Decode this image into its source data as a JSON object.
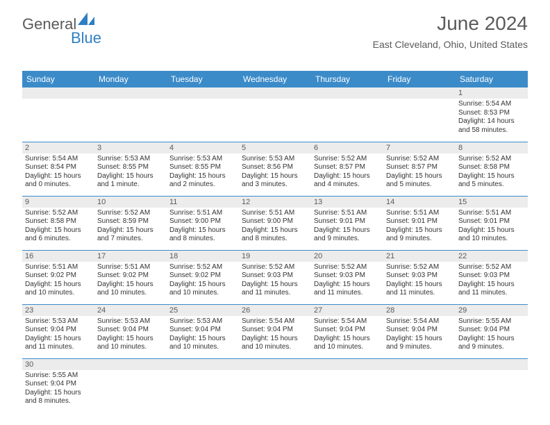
{
  "logo": {
    "part1": "General",
    "part2": "Blue"
  },
  "title": "June 2024",
  "location": "East Cleveland, Ohio, United States",
  "header_bg": "#3b8bc9",
  "header_fg": "#ffffff",
  "daynum_bg": "#ececec",
  "row_border": "#3b8bc9",
  "text_color": "#333333",
  "days": [
    "Sunday",
    "Monday",
    "Tuesday",
    "Wednesday",
    "Thursday",
    "Friday",
    "Saturday"
  ],
  "weeks": [
    [
      null,
      null,
      null,
      null,
      null,
      null,
      {
        "n": "1",
        "sr": "Sunrise: 5:54 AM",
        "ss": "Sunset: 8:53 PM",
        "dl": "Daylight: 14 hours and 58 minutes."
      }
    ],
    [
      {
        "n": "2",
        "sr": "Sunrise: 5:54 AM",
        "ss": "Sunset: 8:54 PM",
        "dl": "Daylight: 15 hours and 0 minutes."
      },
      {
        "n": "3",
        "sr": "Sunrise: 5:53 AM",
        "ss": "Sunset: 8:55 PM",
        "dl": "Daylight: 15 hours and 1 minute."
      },
      {
        "n": "4",
        "sr": "Sunrise: 5:53 AM",
        "ss": "Sunset: 8:55 PM",
        "dl": "Daylight: 15 hours and 2 minutes."
      },
      {
        "n": "5",
        "sr": "Sunrise: 5:53 AM",
        "ss": "Sunset: 8:56 PM",
        "dl": "Daylight: 15 hours and 3 minutes."
      },
      {
        "n": "6",
        "sr": "Sunrise: 5:52 AM",
        "ss": "Sunset: 8:57 PM",
        "dl": "Daylight: 15 hours and 4 minutes."
      },
      {
        "n": "7",
        "sr": "Sunrise: 5:52 AM",
        "ss": "Sunset: 8:57 PM",
        "dl": "Daylight: 15 hours and 5 minutes."
      },
      {
        "n": "8",
        "sr": "Sunrise: 5:52 AM",
        "ss": "Sunset: 8:58 PM",
        "dl": "Daylight: 15 hours and 5 minutes."
      }
    ],
    [
      {
        "n": "9",
        "sr": "Sunrise: 5:52 AM",
        "ss": "Sunset: 8:58 PM",
        "dl": "Daylight: 15 hours and 6 minutes."
      },
      {
        "n": "10",
        "sr": "Sunrise: 5:52 AM",
        "ss": "Sunset: 8:59 PM",
        "dl": "Daylight: 15 hours and 7 minutes."
      },
      {
        "n": "11",
        "sr": "Sunrise: 5:51 AM",
        "ss": "Sunset: 9:00 PM",
        "dl": "Daylight: 15 hours and 8 minutes."
      },
      {
        "n": "12",
        "sr": "Sunrise: 5:51 AM",
        "ss": "Sunset: 9:00 PM",
        "dl": "Daylight: 15 hours and 8 minutes."
      },
      {
        "n": "13",
        "sr": "Sunrise: 5:51 AM",
        "ss": "Sunset: 9:01 PM",
        "dl": "Daylight: 15 hours and 9 minutes."
      },
      {
        "n": "14",
        "sr": "Sunrise: 5:51 AM",
        "ss": "Sunset: 9:01 PM",
        "dl": "Daylight: 15 hours and 9 minutes."
      },
      {
        "n": "15",
        "sr": "Sunrise: 5:51 AM",
        "ss": "Sunset: 9:01 PM",
        "dl": "Daylight: 15 hours and 10 minutes."
      }
    ],
    [
      {
        "n": "16",
        "sr": "Sunrise: 5:51 AM",
        "ss": "Sunset: 9:02 PM",
        "dl": "Daylight: 15 hours and 10 minutes."
      },
      {
        "n": "17",
        "sr": "Sunrise: 5:51 AM",
        "ss": "Sunset: 9:02 PM",
        "dl": "Daylight: 15 hours and 10 minutes."
      },
      {
        "n": "18",
        "sr": "Sunrise: 5:52 AM",
        "ss": "Sunset: 9:02 PM",
        "dl": "Daylight: 15 hours and 10 minutes."
      },
      {
        "n": "19",
        "sr": "Sunrise: 5:52 AM",
        "ss": "Sunset: 9:03 PM",
        "dl": "Daylight: 15 hours and 11 minutes."
      },
      {
        "n": "20",
        "sr": "Sunrise: 5:52 AM",
        "ss": "Sunset: 9:03 PM",
        "dl": "Daylight: 15 hours and 11 minutes."
      },
      {
        "n": "21",
        "sr": "Sunrise: 5:52 AM",
        "ss": "Sunset: 9:03 PM",
        "dl": "Daylight: 15 hours and 11 minutes."
      },
      {
        "n": "22",
        "sr": "Sunrise: 5:52 AM",
        "ss": "Sunset: 9:03 PM",
        "dl": "Daylight: 15 hours and 11 minutes."
      }
    ],
    [
      {
        "n": "23",
        "sr": "Sunrise: 5:53 AM",
        "ss": "Sunset: 9:04 PM",
        "dl": "Daylight: 15 hours and 11 minutes."
      },
      {
        "n": "24",
        "sr": "Sunrise: 5:53 AM",
        "ss": "Sunset: 9:04 PM",
        "dl": "Daylight: 15 hours and 10 minutes."
      },
      {
        "n": "25",
        "sr": "Sunrise: 5:53 AM",
        "ss": "Sunset: 9:04 PM",
        "dl": "Daylight: 15 hours and 10 minutes."
      },
      {
        "n": "26",
        "sr": "Sunrise: 5:54 AM",
        "ss": "Sunset: 9:04 PM",
        "dl": "Daylight: 15 hours and 10 minutes."
      },
      {
        "n": "27",
        "sr": "Sunrise: 5:54 AM",
        "ss": "Sunset: 9:04 PM",
        "dl": "Daylight: 15 hours and 10 minutes."
      },
      {
        "n": "28",
        "sr": "Sunrise: 5:54 AM",
        "ss": "Sunset: 9:04 PM",
        "dl": "Daylight: 15 hours and 9 minutes."
      },
      {
        "n": "29",
        "sr": "Sunrise: 5:55 AM",
        "ss": "Sunset: 9:04 PM",
        "dl": "Daylight: 15 hours and 9 minutes."
      }
    ],
    [
      {
        "n": "30",
        "sr": "Sunrise: 5:55 AM",
        "ss": "Sunset: 9:04 PM",
        "dl": "Daylight: 15 hours and 8 minutes."
      },
      null,
      null,
      null,
      null,
      null,
      null
    ]
  ]
}
